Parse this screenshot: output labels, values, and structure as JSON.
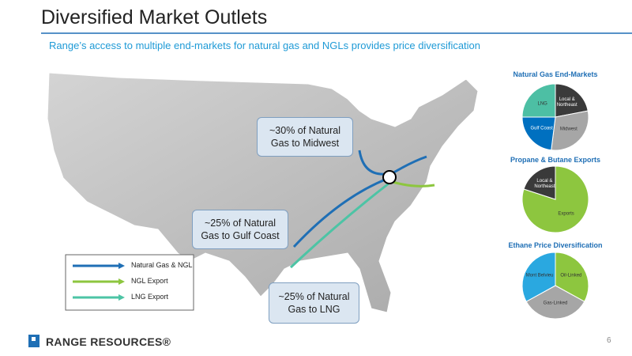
{
  "header": {
    "title": "Diversified Market Outlets",
    "subtitle": "Range’s access to multiple end-markets for natural gas and NGLs provides price diversification"
  },
  "callouts": [
    "~30% of Natural Gas to Midwest",
    "~25% of Natural Gas to Gulf Coast",
    "~25% of Natural Gas to LNG"
  ],
  "legend": [
    {
      "label": "Natural Gas & NGL",
      "color": "#1f6fb5"
    },
    {
      "label": "NGL Export",
      "color": "#8dc63f"
    },
    {
      "label": "LNG Export",
      "color": "#4dc4a5"
    }
  ],
  "chart_data": [
    {
      "type": "pie",
      "title": "Natural Gas End-Markets",
      "categories": [
        "Local & Northeast",
        "Midwest",
        "Gulf Coast",
        "LNG"
      ],
      "values": [
        22,
        30,
        23,
        25
      ],
      "colors": [
        "#3a3a3a",
        "#a6a6a6",
        "#0070c0",
        "#4dbfa4"
      ]
    },
    {
      "type": "pie",
      "title": "Propane & Butane Exports",
      "categories": [
        "Exports",
        "Local & Northeast"
      ],
      "values": [
        80,
        20
      ],
      "colors": [
        "#8dc63f",
        "#3a3a3a"
      ]
    },
    {
      "type": "pie",
      "title": "Ethane Price Diversification",
      "categories": [
        "Oil-Linked",
        "Gas-Linked",
        "Mont Belvieu"
      ],
      "values": [
        33,
        34,
        33
      ],
      "colors": [
        "#8dc63f",
        "#a6a6a6",
        "#2aa8e0"
      ]
    }
  ],
  "footer": {
    "logo": "RANGE RESOURCES®",
    "page": "6"
  }
}
